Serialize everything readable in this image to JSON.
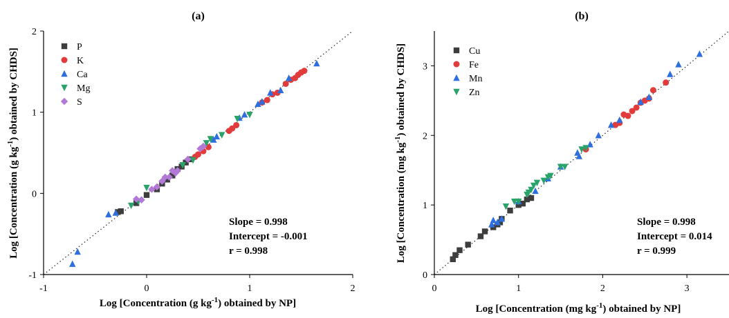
{
  "chart_data": [
    {
      "type": "scatter",
      "title": "(a)",
      "xlabel": {
        "main": "Log [Concentration (g kg",
        "sup": "-1",
        "end": ") obtained by NP]"
      },
      "ylabel": {
        "main": "Log [Concentration (g kg",
        "sup": "-1",
        "end": ") obtained by CHDS]"
      },
      "xlim": [
        -1,
        2
      ],
      "ylim": [
        -1,
        2
      ],
      "xticks": [
        -1,
        0,
        1,
        2
      ],
      "yticks": [
        -1,
        0,
        1,
        2
      ],
      "xtick_labels": [
        "-1",
        "0",
        "1",
        "2"
      ],
      "ytick_labels": [
        "-1",
        "0",
        "1",
        "2"
      ],
      "reference_line": "1:1 dotted",
      "legend_position": "top-left",
      "stats": [
        "Slope = 0.998",
        "Intercept = -0.001",
        "r = 0.998"
      ],
      "series": [
        {
          "name": "P",
          "marker": "square",
          "color": "#3d3d3d",
          "points": [
            [
              -0.28,
              -0.23
            ],
            [
              -0.25,
              -0.22
            ],
            [
              -0.1,
              -0.12
            ],
            [
              0.0,
              -0.02
            ],
            [
              0.1,
              0.05
            ],
            [
              0.15,
              0.12
            ],
            [
              0.2,
              0.17
            ],
            [
              0.25,
              0.22
            ],
            [
              0.3,
              0.3
            ],
            [
              0.34,
              0.33
            ],
            [
              0.38,
              0.38
            ],
            [
              0.42,
              0.42
            ]
          ]
        },
        {
          "name": "K",
          "marker": "circle",
          "color": "#e23b3b",
          "points": [
            [
              0.47,
              0.45
            ],
            [
              0.5,
              0.48
            ],
            [
              0.55,
              0.52
            ],
            [
              0.6,
              0.57
            ],
            [
              0.8,
              0.77
            ],
            [
              0.83,
              0.8
            ],
            [
              0.87,
              0.84
            ],
            [
              1.12,
              1.12
            ],
            [
              1.17,
              1.15
            ],
            [
              1.22,
              1.22
            ],
            [
              1.27,
              1.24
            ],
            [
              1.35,
              1.35
            ],
            [
              1.4,
              1.4
            ],
            [
              1.44,
              1.42
            ],
            [
              1.47,
              1.46
            ],
            [
              1.5,
              1.49
            ],
            [
              1.53,
              1.51
            ]
          ]
        },
        {
          "name": "Ca",
          "marker": "triangle-up",
          "color": "#2f6fdd",
          "points": [
            [
              -0.72,
              -0.87
            ],
            [
              -0.67,
              -0.72
            ],
            [
              -0.37,
              -0.26
            ],
            [
              -0.3,
              -0.24
            ],
            [
              0.65,
              0.66
            ],
            [
              0.68,
              0.7
            ],
            [
              0.9,
              0.93
            ],
            [
              0.95,
              0.97
            ],
            [
              1.08,
              1.1
            ],
            [
              1.12,
              1.13
            ],
            [
              1.2,
              1.24
            ],
            [
              1.3,
              1.27
            ],
            [
              1.38,
              1.42
            ],
            [
              1.65,
              1.6
            ]
          ]
        },
        {
          "name": "Mg",
          "marker": "triangle-down",
          "color": "#2aa36b",
          "points": [
            [
              -0.15,
              -0.15
            ],
            [
              -0.08,
              -0.1
            ],
            [
              0.0,
              0.07
            ],
            [
              0.35,
              0.35
            ],
            [
              0.45,
              0.41
            ],
            [
              0.58,
              0.62
            ],
            [
              0.62,
              0.67
            ],
            [
              0.73,
              0.72
            ],
            [
              0.88,
              0.92
            ],
            [
              1.0,
              0.97
            ]
          ]
        },
        {
          "name": "S",
          "marker": "diamond",
          "color": "#b27ad6",
          "points": [
            [
              -0.1,
              -0.07
            ],
            [
              -0.05,
              -0.08
            ],
            [
              0.05,
              0.05
            ],
            [
              0.1,
              0.08
            ],
            [
              0.15,
              0.15
            ],
            [
              0.18,
              0.2
            ],
            [
              0.22,
              0.2
            ],
            [
              0.25,
              0.28
            ],
            [
              0.28,
              0.25
            ],
            [
              0.3,
              0.28
            ],
            [
              0.4,
              0.42
            ],
            [
              0.52,
              0.55
            ],
            [
              0.55,
              0.58
            ]
          ]
        }
      ]
    },
    {
      "type": "scatter",
      "title": "(b)",
      "xlabel": {
        "main": "Log [Concentration (mg kg",
        "sup": "-1",
        "end": ") obtained by NP]"
      },
      "ylabel": {
        "main": "Log [Concentration (mg kg",
        "sup": "-1",
        "end": ") obtained by CHDS]"
      },
      "xlim": [
        0,
        3.5
      ],
      "ylim": [
        0,
        3.5
      ],
      "xticks": [
        0,
        1,
        2,
        3
      ],
      "yticks": [
        0,
        1,
        2,
        3
      ],
      "xtick_labels": [
        "0",
        "1",
        "2",
        "3"
      ],
      "ytick_labels": [
        "0",
        "1",
        "2",
        "3"
      ],
      "reference_line": "1:1 dotted",
      "legend_position": "top-left",
      "stats": [
        "Slope = 0.998",
        "Intercept = 0.014",
        "r = 0.999"
      ],
      "series": [
        {
          "name": "Cu",
          "marker": "square",
          "color": "#3d3d3d",
          "points": [
            [
              0.22,
              0.22
            ],
            [
              0.25,
              0.28
            ],
            [
              0.3,
              0.35
            ],
            [
              0.4,
              0.43
            ],
            [
              0.55,
              0.55
            ],
            [
              0.6,
              0.62
            ],
            [
              0.7,
              0.68
            ],
            [
              0.75,
              0.72
            ],
            [
              0.78,
              0.75
            ],
            [
              0.8,
              0.8
            ],
            [
              0.9,
              0.92
            ],
            [
              1.0,
              1.0
            ],
            [
              1.05,
              1.02
            ],
            [
              1.1,
              1.08
            ],
            [
              1.15,
              1.1
            ]
          ]
        },
        {
          "name": "Fe",
          "marker": "circle",
          "color": "#e23b3b",
          "points": [
            [
              1.8,
              1.8
            ],
            [
              2.15,
              2.15
            ],
            [
              2.2,
              2.18
            ],
            [
              2.25,
              2.3
            ],
            [
              2.3,
              2.28
            ],
            [
              2.35,
              2.35
            ],
            [
              2.4,
              2.4
            ],
            [
              2.45,
              2.47
            ],
            [
              2.5,
              2.5
            ],
            [
              2.55,
              2.53
            ],
            [
              2.6,
              2.65
            ],
            [
              2.75,
              2.76
            ]
          ]
        },
        {
          "name": "Mn",
          "marker": "triangle-up",
          "color": "#2f6fdd",
          "points": [
            [
              0.68,
              0.72
            ],
            [
              0.7,
              0.78
            ],
            [
              0.75,
              0.75
            ],
            [
              0.8,
              0.8
            ],
            [
              1.0,
              1.05
            ],
            [
              1.2,
              1.2
            ],
            [
              1.35,
              1.38
            ],
            [
              1.5,
              1.55
            ],
            [
              1.7,
              1.75
            ],
            [
              1.72,
              1.7
            ],
            [
              1.85,
              1.87
            ],
            [
              1.95,
              2.0
            ],
            [
              2.1,
              2.15
            ],
            [
              2.2,
              2.22
            ],
            [
              2.45,
              2.48
            ],
            [
              2.55,
              2.55
            ],
            [
              2.8,
              2.88
            ],
            [
              2.9,
              3.02
            ],
            [
              3.15,
              3.17
            ]
          ]
        },
        {
          "name": "Zn",
          "marker": "triangle-down",
          "color": "#2aa36b",
          "points": [
            [
              0.85,
              0.98
            ],
            [
              0.95,
              1.05
            ],
            [
              1.0,
              1.05
            ],
            [
              1.1,
              1.15
            ],
            [
              1.12,
              1.18
            ],
            [
              1.15,
              1.22
            ],
            [
              1.18,
              1.28
            ],
            [
              1.22,
              1.32
            ],
            [
              1.3,
              1.35
            ],
            [
              1.35,
              1.4
            ],
            [
              1.38,
              1.42
            ],
            [
              1.5,
              1.55
            ],
            [
              1.55,
              1.55
            ],
            [
              1.75,
              1.8
            ],
            [
              1.8,
              1.82
            ]
          ]
        }
      ]
    }
  ]
}
